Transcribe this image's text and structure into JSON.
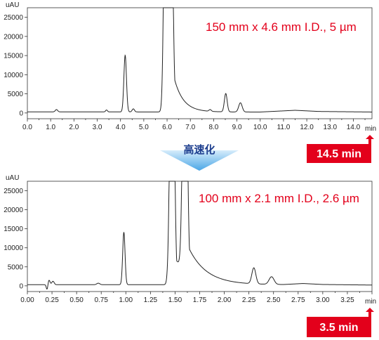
{
  "colors": {
    "trace": "#222222",
    "axis": "#333333",
    "accent": "#e3001b",
    "speed_arrow_top": "#d6ecfb",
    "speed_arrow_bottom": "#4aa6e6",
    "speed_text": "#1e3f8f"
  },
  "speedup": {
    "label": "高速化"
  },
  "chart_data": [
    {
      "type": "line",
      "condition_label": "150 mm x 4.6 mm I.D., 5 µm",
      "run_time_label": "14.5 min",
      "ylabel": "uAU",
      "xlabel": "min",
      "xlim": [
        0,
        14.8
      ],
      "ylim": [
        -1500,
        27500
      ],
      "yticks": [
        0,
        5000,
        10000,
        15000,
        20000,
        25000
      ],
      "xticks": [
        "0.0",
        "1.0",
        "2.0",
        "3.0",
        "4.0",
        "5.0",
        "6.0",
        "7.0",
        "8.0",
        "9.0",
        "10.0",
        "11.0",
        "12.0",
        "13.0",
        "14.0"
      ],
      "baseline": 300,
      "drift": [
        [
          0,
          300
        ],
        [
          10,
          250
        ],
        [
          11.5,
          700
        ],
        [
          12.5,
          400
        ],
        [
          14.8,
          250
        ]
      ],
      "peaks": [
        {
          "rt": 1.25,
          "height": 600,
          "width": 0.05
        },
        {
          "rt": 3.4,
          "height": 500,
          "width": 0.04
        },
        {
          "rt": 4.2,
          "height": 14800,
          "width": 0.055
        },
        {
          "rt": 4.55,
          "height": 800,
          "width": 0.05
        },
        {
          "rt": 5.95,
          "height": 90000,
          "width": 0.075,
          "tail": 0.45
        },
        {
          "rt": 6.15,
          "height": 90000,
          "width": 0.075,
          "tail": 0.35
        },
        {
          "rt": 7.85,
          "height": 450,
          "width": 0.05
        },
        {
          "rt": 8.52,
          "height": 4800,
          "width": 0.06
        },
        {
          "rt": 9.15,
          "height": 2400,
          "width": 0.075
        }
      ]
    },
    {
      "type": "line",
      "condition_label": "100 mm x 2.1 mm I.D., 2.6 µm",
      "run_time_label": "3.5 min",
      "ylabel": "uAU",
      "xlabel": "min",
      "xlim": [
        0,
        3.5
      ],
      "ylim": [
        -1500,
        27500
      ],
      "yticks": [
        0,
        5000,
        10000,
        15000,
        20000,
        25000
      ],
      "xticks": [
        "0.00",
        "0.25",
        "0.50",
        "0.75",
        "1.00",
        "1.25",
        "1.50",
        "1.75",
        "2.00",
        "2.25",
        "2.50",
        "2.75",
        "3.00",
        "3.25"
      ],
      "baseline": 300,
      "drift": [
        [
          0,
          300
        ],
        [
          2.6,
          300
        ],
        [
          2.8,
          600
        ],
        [
          3.0,
          350
        ],
        [
          3.5,
          200
        ]
      ],
      "peaks": [
        {
          "rt": 0.2,
          "height": -1300,
          "width": 0.008
        },
        {
          "rt": 0.22,
          "height": 1200,
          "width": 0.01
        },
        {
          "rt": 0.26,
          "height": 900,
          "width": 0.012
        },
        {
          "rt": 0.72,
          "height": 400,
          "width": 0.015
        },
        {
          "rt": 0.98,
          "height": 13800,
          "width": 0.012
        },
        {
          "rt": 1.47,
          "height": 90000,
          "width": 0.02,
          "tail": 0.18
        },
        {
          "rt": 1.6,
          "height": 90000,
          "width": 0.02,
          "tail": 0.18
        },
        {
          "rt": 2.3,
          "height": 4200,
          "width": 0.02
        },
        {
          "rt": 2.48,
          "height": 2000,
          "width": 0.025
        }
      ]
    }
  ]
}
